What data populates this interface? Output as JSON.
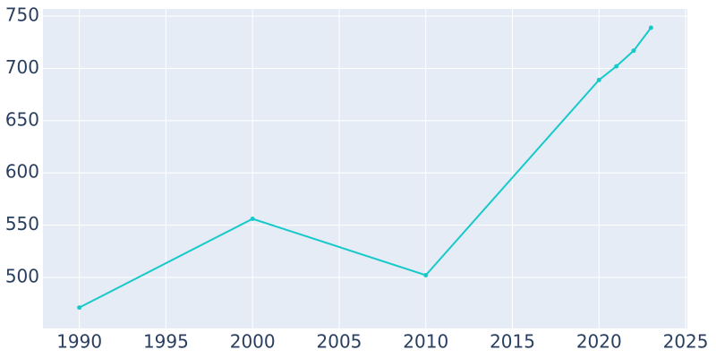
{
  "chart_data": {
    "type": "line",
    "x": [
      1990,
      2000,
      2010,
      2020,
      2021,
      2022,
      2023
    ],
    "series": [
      {
        "color": "#17c9c9",
        "values": [
          471,
          556,
          502,
          689,
          702,
          717,
          739
        ]
      }
    ],
    "xlim": [
      1987.9,
      2025.1
    ],
    "xticks": [
      1990,
      1995,
      2000,
      2005,
      2010,
      2015,
      2020,
      2025
    ],
    "ylim": [
      451,
      757
    ],
    "yticks": [
      500,
      550,
      600,
      650,
      700,
      750
    ],
    "grid": true,
    "markers": true
  }
}
